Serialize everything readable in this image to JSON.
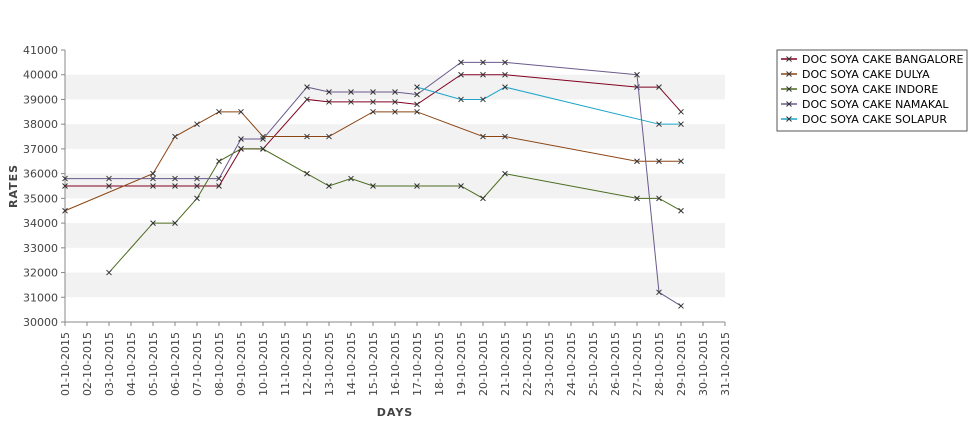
{
  "chart_data": {
    "type": "line",
    "xlabel": "DAYS",
    "ylabel": "RATES",
    "ylim": [
      30000,
      41000
    ],
    "ytick_step": 1000,
    "grid": "alternating horizontal bands",
    "legend_position": "top-right, outside plot",
    "x_categories": [
      "01-10-2015",
      "02-10-2015",
      "03-10-2015",
      "04-10-2015",
      "05-10-2015",
      "06-10-2015",
      "07-10-2015",
      "08-10-2015",
      "09-10-2015",
      "10-10-2015",
      "11-10-2015",
      "12-10-2015",
      "13-10-2015",
      "14-10-2015",
      "15-10-2015",
      "16-10-2015",
      "17-10-2015",
      "18-10-2015",
      "19-10-2015",
      "20-10-2015",
      "21-10-2015",
      "22-10-2015",
      "23-10-2015",
      "24-10-2015",
      "25-10-2015",
      "26-10-2015",
      "27-10-2015",
      "28-10-2015",
      "29-10-2015",
      "30-10-2015",
      "31-10-2015"
    ],
    "series": [
      {
        "name": "DOC SOYA CAKE BANGALORE",
        "color": "#800020",
        "points": [
          [
            "01-10-2015",
            35500
          ],
          [
            "03-10-2015",
            35500
          ],
          [
            "05-10-2015",
            35500
          ],
          [
            "06-10-2015",
            35500
          ],
          [
            "07-10-2015",
            35500
          ],
          [
            "08-10-2015",
            35500
          ],
          [
            "09-10-2015",
            37000
          ],
          [
            "10-10-2015",
            37000
          ],
          [
            "12-10-2015",
            39000
          ],
          [
            "13-10-2015",
            38900
          ],
          [
            "14-10-2015",
            38900
          ],
          [
            "15-10-2015",
            38900
          ],
          [
            "16-10-2015",
            38900
          ],
          [
            "17-10-2015",
            38800
          ],
          [
            "19-10-2015",
            40000
          ],
          [
            "20-10-2015",
            40000
          ],
          [
            "21-10-2015",
            40000
          ],
          [
            "27-10-2015",
            39500
          ],
          [
            "28-10-2015",
            39500
          ],
          [
            "29-10-2015",
            38500
          ]
        ]
      },
      {
        "name": "DOC SOYA CAKE DULYA",
        "color": "#8B4513",
        "points": [
          [
            "01-10-2015",
            34500
          ],
          [
            "05-10-2015",
            36000
          ],
          [
            "06-10-2015",
            37500
          ],
          [
            "07-10-2015",
            38000
          ],
          [
            "08-10-2015",
            38500
          ],
          [
            "09-10-2015",
            38500
          ],
          [
            "10-10-2015",
            37500
          ],
          [
            "12-10-2015",
            37500
          ],
          [
            "13-10-2015",
            37500
          ],
          [
            "15-10-2015",
            38500
          ],
          [
            "16-10-2015",
            38500
          ],
          [
            "17-10-2015",
            38500
          ],
          [
            "20-10-2015",
            37500
          ],
          [
            "21-10-2015",
            37500
          ],
          [
            "27-10-2015",
            36500
          ],
          [
            "28-10-2015",
            36500
          ],
          [
            "29-10-2015",
            36500
          ]
        ]
      },
      {
        "name": "DOC SOYA CAKE INDORE",
        "color": "#4B6B1E",
        "points": [
          [
            "03-10-2015",
            32000
          ],
          [
            "05-10-2015",
            34000
          ],
          [
            "06-10-2015",
            34000
          ],
          [
            "07-10-2015",
            35000
          ],
          [
            "08-10-2015",
            36500
          ],
          [
            "09-10-2015",
            37000
          ],
          [
            "10-10-2015",
            37000
          ],
          [
            "12-10-2015",
            36000
          ],
          [
            "13-10-2015",
            35500
          ],
          [
            "14-10-2015",
            35800
          ],
          [
            "15-10-2015",
            35500
          ],
          [
            "17-10-2015",
            35500
          ],
          [
            "19-10-2015",
            35500
          ],
          [
            "20-10-2015",
            35000
          ],
          [
            "21-10-2015",
            36000
          ],
          [
            "27-10-2015",
            35000
          ],
          [
            "28-10-2015",
            35000
          ],
          [
            "29-10-2015",
            34500
          ]
        ]
      },
      {
        "name": "DOC SOYA CAKE NAMAKAL",
        "color": "#6A5A8C",
        "points": [
          [
            "01-10-2015",
            35800
          ],
          [
            "03-10-2015",
            35800
          ],
          [
            "05-10-2015",
            35800
          ],
          [
            "06-10-2015",
            35800
          ],
          [
            "07-10-2015",
            35800
          ],
          [
            "08-10-2015",
            35800
          ],
          [
            "09-10-2015",
            37400
          ],
          [
            "10-10-2015",
            37400
          ],
          [
            "12-10-2015",
            39500
          ],
          [
            "13-10-2015",
            39300
          ],
          [
            "14-10-2015",
            39300
          ],
          [
            "15-10-2015",
            39300
          ],
          [
            "16-10-2015",
            39300
          ],
          [
            "17-10-2015",
            39200
          ],
          [
            "19-10-2015",
            40500
          ],
          [
            "20-10-2015",
            40500
          ],
          [
            "21-10-2015",
            40500
          ],
          [
            "27-10-2015",
            40000
          ],
          [
            "28-10-2015",
            31200
          ],
          [
            "29-10-2015",
            30650
          ]
        ]
      },
      {
        "name": "DOC SOYA CAKE SOLAPUR",
        "color": "#1EA5C8",
        "points": [
          [
            "17-10-2015",
            39500
          ],
          [
            "19-10-2015",
            39000
          ],
          [
            "20-10-2015",
            39000
          ],
          [
            "21-10-2015",
            39500
          ],
          [
            "28-10-2015",
            38000
          ],
          [
            "29-10-2015",
            38000
          ]
        ]
      }
    ]
  },
  "colors": {
    "band": "#f2f2f2",
    "axis": "#888888",
    "marker": "#333333"
  }
}
